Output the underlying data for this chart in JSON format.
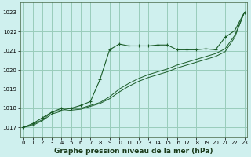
{
  "title": "Graphe pression niveau de la mer (hPa)",
  "background_color": "#cff0ee",
  "grid_color": "#99ccbb",
  "line_color": "#1a5c28",
  "ylim": [
    1016.5,
    1023.5
  ],
  "yticks": [
    1017,
    1018,
    1019,
    1020,
    1021,
    1022,
    1023
  ],
  "xlim": [
    -0.3,
    23.3
  ],
  "series1_x": [
    0,
    1,
    2,
    3,
    4,
    5,
    6,
    7,
    8,
    9,
    10,
    11,
    12,
    13,
    14,
    15,
    16,
    17,
    18,
    19,
    20,
    21,
    22,
    23
  ],
  "series1_y": [
    1017.0,
    1017.2,
    1017.5,
    1017.8,
    1018.0,
    1018.0,
    1018.15,
    1018.35,
    1019.5,
    1021.05,
    1021.35,
    1021.25,
    1021.25,
    1021.25,
    1021.3,
    1021.3,
    1021.05,
    1021.05,
    1021.05,
    1021.1,
    1021.05,
    1021.7,
    1022.05,
    1023.0
  ],
  "series2_x": [
    0,
    1,
    2,
    3,
    4,
    5,
    6,
    7,
    8,
    9,
    10,
    11,
    12,
    13,
    14,
    15,
    16,
    17,
    18,
    19,
    20,
    21,
    22,
    23
  ],
  "series2_y": [
    1017.0,
    1017.15,
    1017.4,
    1017.8,
    1017.9,
    1018.0,
    1018.0,
    1018.15,
    1018.3,
    1018.6,
    1019.0,
    1019.3,
    1019.55,
    1019.75,
    1019.9,
    1020.05,
    1020.25,
    1020.4,
    1020.55,
    1020.7,
    1020.85,
    1021.1,
    1021.8,
    1023.0
  ],
  "series3_x": [
    0,
    1,
    2,
    3,
    4,
    5,
    6,
    7,
    8,
    9,
    10,
    11,
    12,
    13,
    14,
    15,
    16,
    17,
    18,
    19,
    20,
    21,
    22,
    23
  ],
  "series3_y": [
    1017.0,
    1017.1,
    1017.35,
    1017.7,
    1017.85,
    1017.9,
    1017.95,
    1018.1,
    1018.25,
    1018.5,
    1018.85,
    1019.15,
    1019.4,
    1019.6,
    1019.75,
    1019.9,
    1020.1,
    1020.25,
    1020.4,
    1020.55,
    1020.7,
    1020.95,
    1021.7,
    1023.0
  ],
  "xlabel_fontsize": 6.5,
  "tick_fontsize": 5.0,
  "line_width": 0.8,
  "marker_size": 3.0
}
